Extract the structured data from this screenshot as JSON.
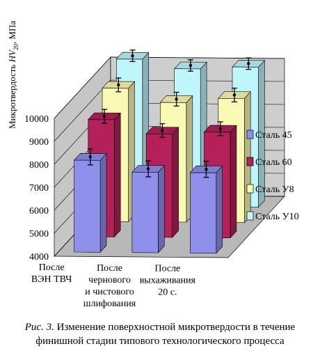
{
  "chart_data": {
    "type": "bar",
    "ylabel": "Микротвердость HV20, МПа",
    "ylabel_parts": {
      "pre": "Микротвердость ",
      "var": "HV",
      "sub": "20",
      "post": ", МПа"
    },
    "yticks": [
      4000,
      5000,
      6000,
      7000,
      8000,
      9000,
      10000
    ],
    "ylim": [
      4000,
      10000
    ],
    "categories": [
      {
        "lines": [
          "После",
          "ВЭН ТВЧ"
        ]
      },
      {
        "lines": [
          "После",
          "чернового",
          "и чистового",
          "шлифования"
        ]
      },
      {
        "lines": [
          "После",
          "выхаживания",
          "20 с."
        ]
      }
    ],
    "series": [
      {
        "name": "Сталь 45",
        "values": [
          8000,
          7500,
          7500
        ],
        "error": 350,
        "color": "#8f8fec"
      },
      {
        "name": "Сталь 60",
        "values": [
          9100,
          8500,
          8600
        ],
        "error": 300,
        "color": "#b4205a"
      },
      {
        "name": "Сталь У8",
        "values": [
          9800,
          9200,
          9400
        ],
        "error": 300,
        "color": "#fbfab4"
      },
      {
        "name": "Сталь У10",
        "values": [
          10400,
          10000,
          10100
        ],
        "error": 250,
        "color": "#bff6fb"
      }
    ],
    "grid": true,
    "legend_position": "right"
  },
  "caption": {
    "fig_label": "Рис. 3.",
    "text_line1": " Изменение поверхностной микротвердости в течение",
    "text_line2": "финишной стадии типового технологического процесса"
  }
}
